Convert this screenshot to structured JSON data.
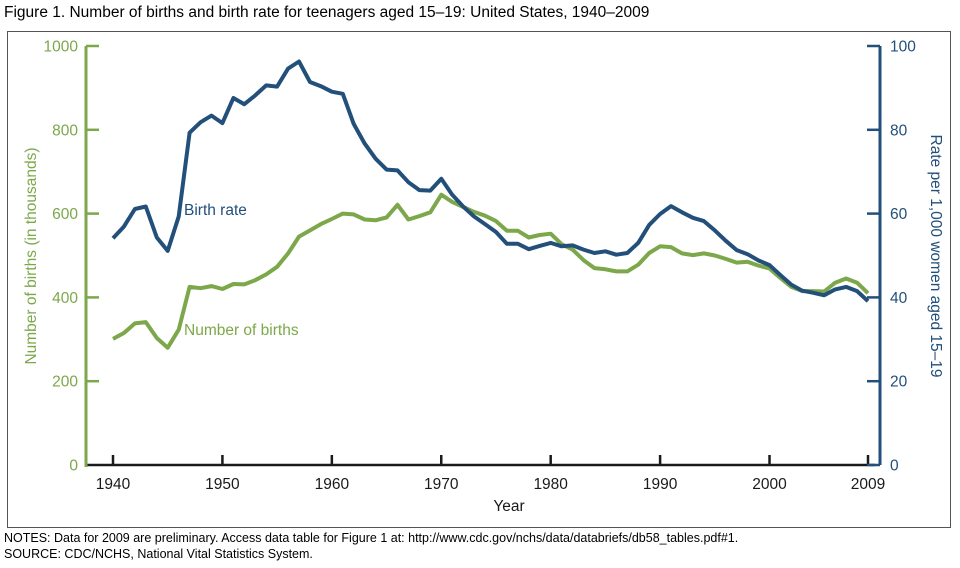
{
  "title": "Figure 1. Number of births and birth rate for teenagers aged 15–19: United States, 1940–2009",
  "notes": {
    "line1": "NOTES: Data for 2009 are preliminary. Access data table for Figure 1 at: http://www.cdc.gov/nchs/data/databriefs/db58_tables.pdf#1.",
    "line2": "SOURCE: CDC/NCHS, National Vital Statistics System."
  },
  "colors": {
    "births_green": "#7CA74A",
    "rate_blue": "#234F7B",
    "axis_black": "#1a1a1a",
    "frame_gray": "#545454"
  },
  "chart_data": {
    "type": "line",
    "title": "Number of births and birth rate for teenagers aged 15–19: United States, 1940–2009",
    "xlabel": "Year",
    "x_ticks": [
      1940,
      1950,
      1960,
      1970,
      1980,
      1990,
      2000,
      2009
    ],
    "x": [
      1940,
      1941,
      1942,
      1943,
      1944,
      1945,
      1946,
      1947,
      1948,
      1949,
      1950,
      1951,
      1952,
      1953,
      1954,
      1955,
      1956,
      1957,
      1958,
      1959,
      1960,
      1961,
      1962,
      1963,
      1964,
      1965,
      1966,
      1967,
      1968,
      1969,
      1970,
      1971,
      1972,
      1973,
      1974,
      1975,
      1976,
      1977,
      1978,
      1979,
      1980,
      1981,
      1982,
      1983,
      1984,
      1985,
      1986,
      1987,
      1988,
      1989,
      1990,
      1991,
      1992,
      1993,
      1994,
      1995,
      1996,
      1997,
      1998,
      1999,
      2000,
      2001,
      2002,
      2003,
      2004,
      2005,
      2006,
      2007,
      2008,
      2009
    ],
    "series": [
      {
        "name": "Number of births",
        "axis": "left",
        "color": "#7CA74A",
        "values": [
          301,
          315,
          338,
          341,
          303,
          280,
          323,
          425,
          422,
          427,
          420,
          432,
          431,
          441,
          455,
          473,
          505,
          545,
          560,
          575,
          587,
          600,
          598,
          586,
          584,
          591,
          621,
          586,
          594,
          603,
          645,
          628,
          616,
          604,
          595,
          582,
          559,
          559,
          543,
          549,
          552,
          527,
          514,
          489,
          470,
          467,
          462,
          462,
          478,
          506,
          522,
          520,
          505,
          501,
          505,
          500,
          492,
          483,
          485,
          476,
          469,
          446,
          425,
          415,
          415,
          414,
          435,
          445,
          435,
          410
        ]
      },
      {
        "name": "Birth rate",
        "axis": "right",
        "color": "#234F7B",
        "values": [
          54.1,
          56.9,
          61.1,
          61.7,
          54.3,
          51.1,
          59.3,
          79.3,
          81.8,
          83.4,
          81.6,
          87.6,
          86.1,
          88.2,
          90.6,
          90.3,
          94.6,
          96.3,
          91.4,
          90.4,
          89.1,
          88.6,
          81.4,
          76.7,
          73.1,
          70.5,
          70.3,
          67.5,
          65.6,
          65.5,
          68.3,
          64.5,
          61.7,
          59.3,
          57.5,
          55.6,
          52.8,
          52.8,
          51.5,
          52.3,
          53.0,
          52.2,
          52.4,
          51.4,
          50.6,
          51.0,
          50.2,
          50.6,
          53.0,
          57.3,
          59.9,
          61.8,
          60.3,
          59.0,
          58.2,
          56.0,
          53.5,
          51.3,
          50.3,
          48.8,
          47.7,
          45.3,
          43.0,
          41.6,
          41.1,
          40.5,
          41.9,
          42.5,
          41.5,
          39.1
        ]
      }
    ],
    "left_axis": {
      "title": "Number of births (in thousands)",
      "ticks": [
        0,
        200,
        400,
        600,
        800,
        1000
      ],
      "range": [
        0,
        1000
      ],
      "color": "#7CA74A"
    },
    "right_axis": {
      "title": "Rate per 1,000 women aged 15–19",
      "ticks": [
        0,
        20,
        40,
        60,
        80,
        100
      ],
      "range": [
        0,
        100
      ],
      "color": "#234F7B"
    },
    "grid": false,
    "legend_position": "inline-annotations"
  }
}
